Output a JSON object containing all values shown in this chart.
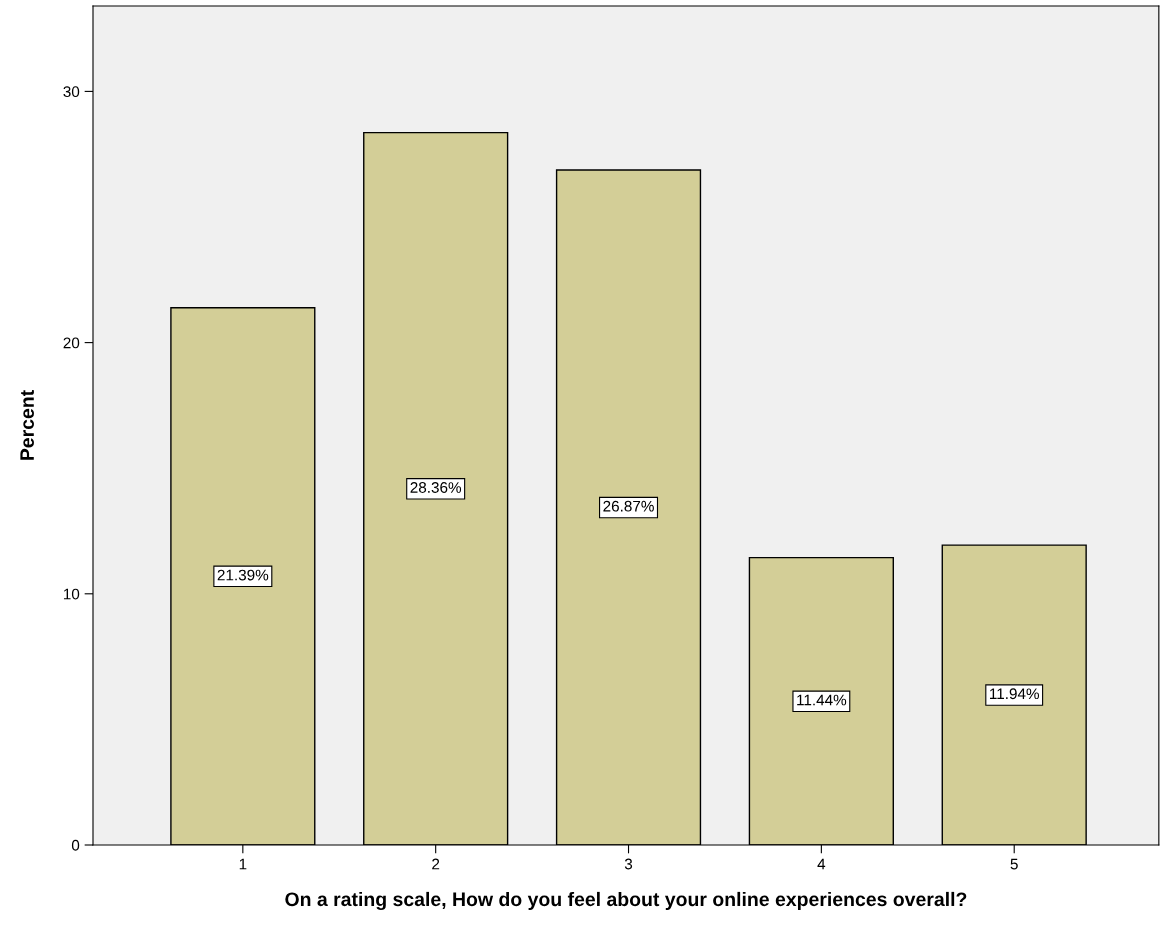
{
  "chart_data": {
    "type": "bar",
    "xlabel": "On a rating scale, How do you feel about your online experiences overall?",
    "ylabel": "Percent",
    "categories": [
      "1",
      "2",
      "3",
      "4",
      "5"
    ],
    "values": [
      21.39,
      28.36,
      26.87,
      11.44,
      11.94
    ],
    "value_labels": [
      "21.39%",
      "28.36%",
      "26.87%",
      "11.44%",
      "11.94%"
    ],
    "color": "#d3ce97",
    "ylim": [
      0,
      33.4
    ],
    "yticks": [
      0,
      10,
      20,
      30
    ]
  }
}
